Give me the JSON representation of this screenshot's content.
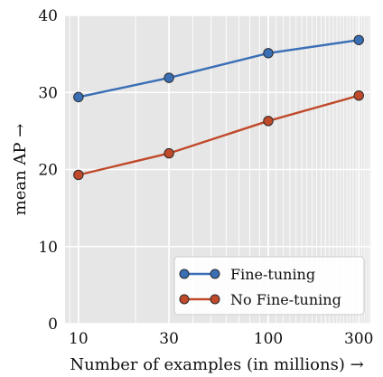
{
  "chart_data": {
    "type": "line",
    "x_scale": "log",
    "x": [
      10,
      30,
      100,
      300
    ],
    "x_ticks": [
      10,
      30,
      100,
      300
    ],
    "xlim": [
      8.5,
      345
    ],
    "ylim": [
      0,
      40
    ],
    "y_ticks": [
      0,
      10,
      20,
      30,
      40
    ],
    "xlabel": "Number of examples (in millions) →",
    "ylabel": "mean AP →",
    "grid": true,
    "legend_position": "bottom-right",
    "series": [
      {
        "name": "Fine-tuning",
        "values": [
          29.4,
          31.9,
          35.1,
          36.8
        ],
        "color": "#3a6fb6"
      },
      {
        "name": "No Fine-tuning",
        "values": [
          19.3,
          22.1,
          26.3,
          29.6
        ],
        "color": "#c0492a"
      }
    ],
    "colors": {
      "plot_background": "#e6e6e6",
      "grid": "#ffffff"
    }
  }
}
